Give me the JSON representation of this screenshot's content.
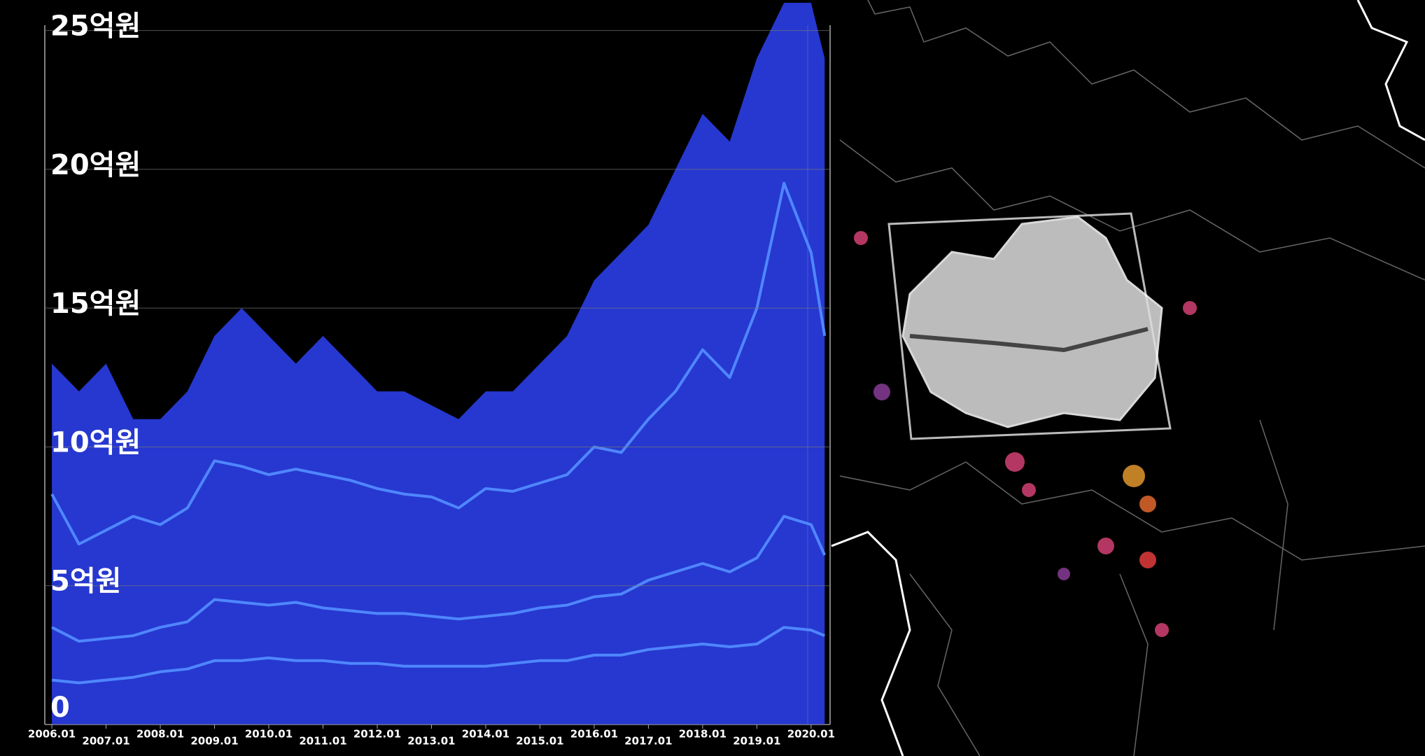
{
  "chart_data": {
    "type": "line",
    "x": [
      2006,
      2006.5,
      2007,
      2007.5,
      2008,
      2008.5,
      2009,
      2009.5,
      2010,
      2010.5,
      2011,
      2011.5,
      2012,
      2012.5,
      2013,
      2013.5,
      2014,
      2014.5,
      2015,
      2015.5,
      2016,
      2016.5,
      2017,
      2017.5,
      2018,
      2018.5,
      2019,
      2019.5,
      2020,
      2020.25
    ],
    "xlim": [
      2005.87,
      2020.35
    ],
    "xticks": [
      {
        "value": 2006,
        "label": "2006.01"
      },
      {
        "value": 2007,
        "label": "2007.01"
      },
      {
        "value": 2008,
        "label": "2008.01"
      },
      {
        "value": 2009,
        "label": "2009.01"
      },
      {
        "value": 2010,
        "label": "2010.01"
      },
      {
        "value": 2011,
        "label": "2011.01"
      },
      {
        "value": 2012,
        "label": "2012.01"
      },
      {
        "value": 2013,
        "label": "2013.01"
      },
      {
        "value": 2014,
        "label": "2014.01"
      },
      {
        "value": 2015,
        "label": "2015.01"
      },
      {
        "value": 2016,
        "label": "2016.01"
      },
      {
        "value": 2017,
        "label": "2017.01"
      },
      {
        "value": 2018,
        "label": "2018.01"
      },
      {
        "value": 2019,
        "label": "2019.01"
      },
      {
        "value": 2020,
        "label": "2020.01"
      }
    ],
    "ylim": [
      0,
      26.1
    ],
    "yticks": [
      0,
      {
        "value": 5,
        "label": "5억원"
      },
      {
        "value": 10,
        "label": "10억원"
      },
      {
        "value": 15,
        "label": "15억원"
      },
      {
        "value": 20,
        "label": "20억원"
      },
      {
        "value": 25,
        "label": "25억원"
      }
    ],
    "grid": true,
    "series": [
      {
        "style": "area",
        "color": "#2a3ee6",
        "values": [
          13,
          12,
          13,
          11,
          11,
          12,
          14,
          15,
          14,
          13,
          14,
          13,
          12,
          12,
          11.5,
          11,
          12,
          12,
          13,
          14,
          16,
          17,
          18,
          20,
          22,
          21,
          24,
          26,
          26,
          24
        ]
      },
      {
        "style": "line",
        "color": "#4f86ff",
        "values": [
          8.3,
          6.5,
          7.0,
          7.5,
          7.2,
          7.8,
          9.5,
          9.3,
          9.0,
          9.2,
          9.0,
          8.8,
          8.5,
          8.3,
          8.2,
          7.8,
          8.5,
          8.4,
          8.7,
          9.0,
          10.0,
          9.8,
          11.0,
          12.0,
          13.5,
          12.5,
          15.0,
          19.5,
          17.0,
          14.0
        ]
      },
      {
        "style": "line",
        "color": "#4f86ff",
        "values": [
          3.5,
          3.0,
          3.1,
          3.2,
          3.5,
          3.7,
          4.5,
          4.4,
          4.3,
          4.4,
          4.2,
          4.1,
          4.0,
          4.0,
          3.9,
          3.8,
          3.9,
          4.0,
          4.2,
          4.3,
          4.6,
          4.7,
          5.2,
          5.5,
          5.8,
          5.5,
          6.0,
          7.5,
          7.2,
          6.1
        ]
      },
      {
        "style": "line",
        "color": "#4f86ff",
        "values": [
          1.6,
          1.5,
          1.6,
          1.7,
          1.9,
          2.0,
          2.3,
          2.3,
          2.4,
          2.3,
          2.3,
          2.2,
          2.2,
          2.1,
          2.1,
          2.1,
          2.1,
          2.2,
          2.3,
          2.3,
          2.5,
          2.5,
          2.7,
          2.8,
          2.9,
          2.8,
          2.9,
          3.5,
          3.4,
          3.2
        ]
      }
    ]
  }
}
